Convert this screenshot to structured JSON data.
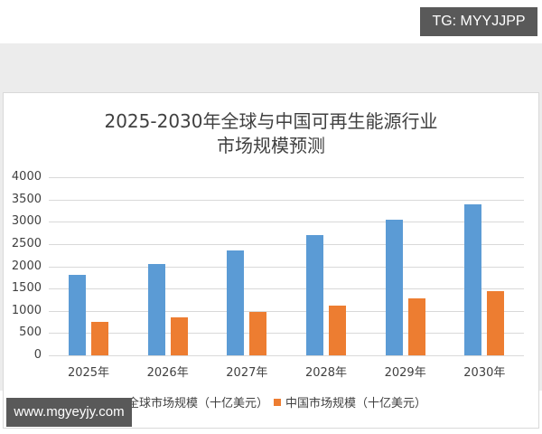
{
  "badges": {
    "top_right": "TG: MYYJJPP",
    "bottom_left": "www.mgyeyjy.com"
  },
  "colors": {
    "global": "#5b9bd5",
    "china": "#ed7d31",
    "badge_bg": "#595959",
    "grid": "#d9d9d9"
  },
  "chart_data": {
    "type": "bar",
    "title": "2025-2030年全球与中国可再生能源行业市场规模预测",
    "title_lines": [
      "2025-2030年全球与中国可再生能源行业",
      "市场规模预测"
    ],
    "categories": [
      "2025年",
      "2026年",
      "2027年",
      "2028年",
      "2029年",
      "2030年"
    ],
    "series": [
      {
        "name": "全球市场规模（十亿美元）",
        "color": "#5b9bd5",
        "values": [
          1800,
          2050,
          2350,
          2700,
          3050,
          3400
        ]
      },
      {
        "name": "中国市场规模（十亿美元）",
        "color": "#ed7d31",
        "values": [
          750,
          850,
          980,
          1110,
          1270,
          1440
        ]
      }
    ],
    "xlabel": "",
    "ylabel": "",
    "ylim": [
      0,
      4000
    ],
    "yticks": [
      "4000",
      "3500",
      "3000",
      "2500",
      "2000",
      "1500",
      "1000",
      "500",
      "0"
    ],
    "grid": true,
    "legend_position": "bottom"
  }
}
